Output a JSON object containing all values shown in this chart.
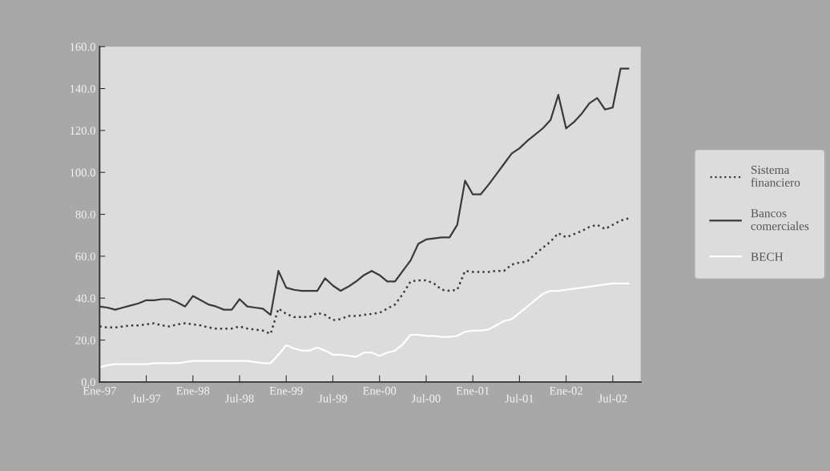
{
  "chart_data": {
    "type": "line",
    "categories": [
      "Ene-97",
      null,
      null,
      null,
      null,
      null,
      "Jul-97",
      null,
      null,
      null,
      null,
      null,
      "Ene-98",
      null,
      null,
      null,
      null,
      null,
      "Jul-98",
      null,
      null,
      null,
      null,
      null,
      "Ene-99",
      null,
      null,
      null,
      null,
      null,
      "Jul-99",
      null,
      null,
      null,
      null,
      null,
      "Ene-00",
      null,
      null,
      null,
      null,
      null,
      "Jul-00",
      null,
      null,
      null,
      null,
      null,
      "Ene-01",
      null,
      null,
      null,
      null,
      null,
      "Jul-01",
      null,
      null,
      null,
      null,
      null,
      "Ene-02",
      null,
      null,
      null,
      null,
      null,
      "Jul-02",
      null,
      null
    ],
    "series": [
      {
        "name": "Sistema\nfinanciero",
        "color": "#3c3c3c",
        "line_style": "dotted",
        "values": [
          26.5,
          26,
          26,
          26.5,
          27,
          27,
          27.5,
          28,
          27,
          26.5,
          27.5,
          28,
          27.5,
          27,
          26,
          25.5,
          25.5,
          25.5,
          26.5,
          25.5,
          25,
          24.5,
          23,
          35,
          32.5,
          31,
          31,
          31,
          33,
          32,
          29.5,
          30,
          31.5,
          31.5,
          32,
          32.5,
          33,
          35,
          37,
          42,
          48,
          48.5,
          48.5,
          47,
          44,
          43.5,
          44,
          53,
          52.5,
          52.5,
          52.5,
          53,
          53,
          56,
          57,
          57.5,
          61,
          64,
          67,
          71,
          69,
          70.5,
          72,
          74,
          75,
          73,
          75,
          77,
          78
        ]
      },
      {
        "name": "Bancos\ncomerciales",
        "color": "#3a3a3a",
        "line_style": "solid",
        "values": [
          36,
          35.5,
          34.5,
          35.5,
          36.5,
          37.5,
          39,
          39,
          39.5,
          39.5,
          38,
          36,
          41,
          39,
          37,
          36,
          34.5,
          34.5,
          39.5,
          36,
          35.5,
          35,
          32,
          53,
          45,
          44,
          43.5,
          43.5,
          43.5,
          49.5,
          46,
          43.5,
          45.5,
          48,
          51,
          53,
          51,
          48,
          48,
          53,
          58,
          66,
          68,
          68.5,
          69,
          69,
          75,
          96,
          89.5,
          89.5,
          94,
          99,
          104,
          109,
          111.5,
          115,
          118,
          121,
          125,
          137,
          121,
          124,
          128,
          133,
          135.5,
          130,
          131,
          149.5,
          149.5
        ]
      },
      {
        "name": "BECH",
        "color": "#ffffff",
        "line_style": "solid",
        "values": [
          7,
          8,
          8.5,
          8.5,
          8.5,
          8.5,
          8.5,
          9,
          9,
          9,
          9,
          9.5,
          10,
          10,
          10,
          10,
          10,
          10,
          10,
          10,
          9.5,
          9,
          9,
          13,
          17.5,
          16,
          15,
          15,
          16.5,
          15,
          13,
          13,
          12.5,
          12,
          14,
          14,
          12.5,
          14,
          15,
          18,
          22.5,
          22.5,
          22,
          22,
          21.5,
          21.5,
          22,
          24,
          24.5,
          24.5,
          25,
          27,
          29,
          30,
          33,
          36,
          39,
          42,
          43.5,
          43.5,
          44,
          44.5,
          45,
          45.5,
          46,
          46.5,
          47,
          47,
          47
        ]
      }
    ],
    "ylim": [
      0,
      160
    ],
    "yticks": [
      {
        "value": 0,
        "label": "0.0"
      },
      {
        "value": 20,
        "label": "20.0"
      },
      {
        "value": 40,
        "label": "40.0"
      },
      {
        "value": 60,
        "label": "60.0"
      },
      {
        "value": 80,
        "label": "80.0"
      },
      {
        "value": 100,
        "label": "100.0"
      },
      {
        "value": 120,
        "label": "120.0"
      },
      {
        "value": 140,
        "label": "140.0"
      },
      {
        "value": 160,
        "label": "160.0"
      }
    ],
    "grid": false,
    "legend": "right",
    "marker": "none"
  }
}
